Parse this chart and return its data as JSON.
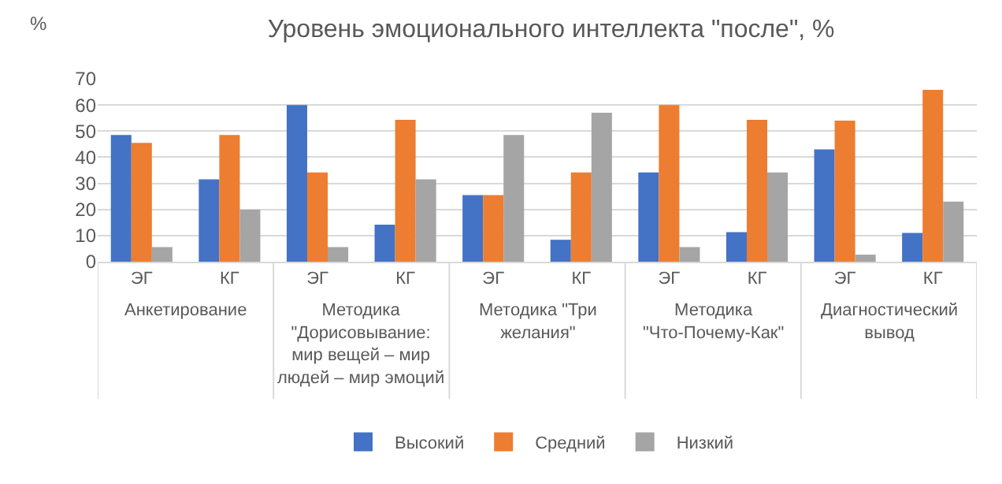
{
  "chart_data": {
    "type": "bar",
    "title": "Уровень эмоционального интеллекта \"после\", %",
    "ylabel": "%",
    "categories": [
      "ЭГ",
      "КГ",
      "ЭГ",
      "КГ",
      "ЭГ",
      "КГ",
      "ЭГ",
      "КГ",
      "ЭГ",
      "КГ"
    ],
    "annotations": [
      "Анкетирование",
      "Методика \"Дорисовывание: мир вещей – мир людей – мир эмоций",
      "Методика \"Три желания\"",
      "Методика \"Что-Почему-Как\"",
      "Диагностический вывод"
    ],
    "series": [
      {
        "name": "Высокий",
        "color": "#4472c4",
        "values": [
          48.5,
          31.5,
          60,
          14.2,
          25.5,
          8.4,
          34.2,
          11.3,
          43,
          11
        ]
      },
      {
        "name": "Средний",
        "color": "#ed7d31",
        "values": [
          45.5,
          48.5,
          34.2,
          54.3,
          25.5,
          34.2,
          60,
          54.3,
          54,
          65.8
        ]
      },
      {
        "name": "Низкий",
        "color": "#a5a5a5",
        "values": [
          5.6,
          19.9,
          5.6,
          31.5,
          48.5,
          57,
          5.6,
          34.2,
          2.7,
          23
        ]
      }
    ],
    "ylim": [
      0,
      70
    ],
    "yticks": [
      0,
      10,
      20,
      30,
      40,
      50,
      60,
      70
    ],
    "grid": "y",
    "legend": "bottom"
  }
}
